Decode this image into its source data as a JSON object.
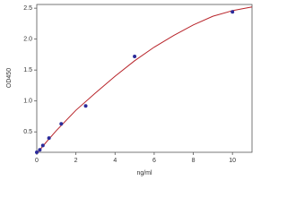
{
  "chart_data": {
    "type": "scatter",
    "x_label": "ng/ml",
    "y_label": "OD450",
    "points": {
      "x": [
        0,
        0.156,
        0.312,
        0.625,
        1.25,
        2.5,
        5,
        10
      ],
      "y": [
        0.17,
        0.21,
        0.28,
        0.4,
        0.63,
        0.92,
        1.72,
        2.44
      ],
      "color": "#2b2b9a"
    },
    "curve": {
      "x": [
        0,
        0.5,
        1,
        2,
        3,
        4,
        5,
        6,
        7,
        8,
        9,
        10,
        11
      ],
      "y": [
        0.15,
        0.34,
        0.52,
        0.85,
        1.13,
        1.4,
        1.65,
        1.87,
        2.06,
        2.23,
        2.37,
        2.46,
        2.52
      ],
      "color": "#b8242a"
    },
    "xlim": [
      0,
      11
    ],
    "ylim": [
      0.17,
      2.56
    ],
    "xticks": [
      0,
      2,
      4,
      6,
      8,
      10
    ],
    "yticks": [
      0.5,
      {
        "value": 1,
        "label": "1.0"
      },
      1.5,
      {
        "value": 2,
        "label": "2.0"
      },
      2.5
    ],
    "grid": false
  }
}
